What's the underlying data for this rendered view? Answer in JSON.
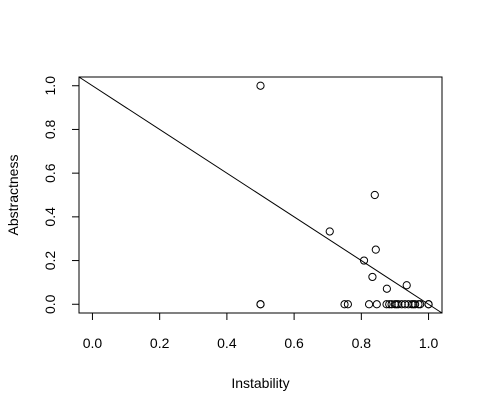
{
  "chart_data": {
    "type": "scatter",
    "xlabel": "Instability",
    "ylabel": "Abstractness",
    "xlim": [
      -0.04,
      1.04
    ],
    "ylim": [
      -0.04,
      1.04
    ],
    "xticks": [
      "0.0",
      "0.2",
      "0.4",
      "0.6",
      "0.8",
      "1.0"
    ],
    "yticks": [
      "0.0",
      "0.2",
      "0.4",
      "0.6",
      "0.8",
      "1.0"
    ],
    "reference_line": {
      "x": [
        0,
        1
      ],
      "y": [
        1,
        0
      ]
    },
    "points": [
      {
        "x": 0.5,
        "y": 1.0
      },
      {
        "x": 0.5,
        "y": 0.0
      },
      {
        "x": 0.5,
        "y": 0.0
      },
      {
        "x": 0.75,
        "y": 0.0
      },
      {
        "x": 0.76,
        "y": 0.0
      },
      {
        "x": 0.706,
        "y": 0.333
      },
      {
        "x": 0.808,
        "y": 0.2
      },
      {
        "x": 0.833,
        "y": 0.125
      },
      {
        "x": 0.84,
        "y": 0.5
      },
      {
        "x": 0.843,
        "y": 0.25
      },
      {
        "x": 0.823,
        "y": 0.0
      },
      {
        "x": 0.846,
        "y": 0.0
      },
      {
        "x": 0.876,
        "y": 0.071
      },
      {
        "x": 0.875,
        "y": 0.0
      },
      {
        "x": 0.883,
        "y": 0.0
      },
      {
        "x": 0.89,
        "y": 0.0
      },
      {
        "x": 0.9,
        "y": 0.0
      },
      {
        "x": 0.905,
        "y": 0.0
      },
      {
        "x": 0.91,
        "y": 0.0
      },
      {
        "x": 0.92,
        "y": 0.0
      },
      {
        "x": 0.93,
        "y": 0.0
      },
      {
        "x": 0.935,
        "y": 0.087
      },
      {
        "x": 0.94,
        "y": 0.0
      },
      {
        "x": 0.95,
        "y": 0.0
      },
      {
        "x": 0.955,
        "y": 0.0
      },
      {
        "x": 0.96,
        "y": 0.0
      },
      {
        "x": 0.97,
        "y": 0.0
      },
      {
        "x": 0.975,
        "y": 0.0
      },
      {
        "x": 1.0,
        "y": 0.0
      },
      {
        "x": 1.0,
        "y": 0.0
      }
    ]
  }
}
